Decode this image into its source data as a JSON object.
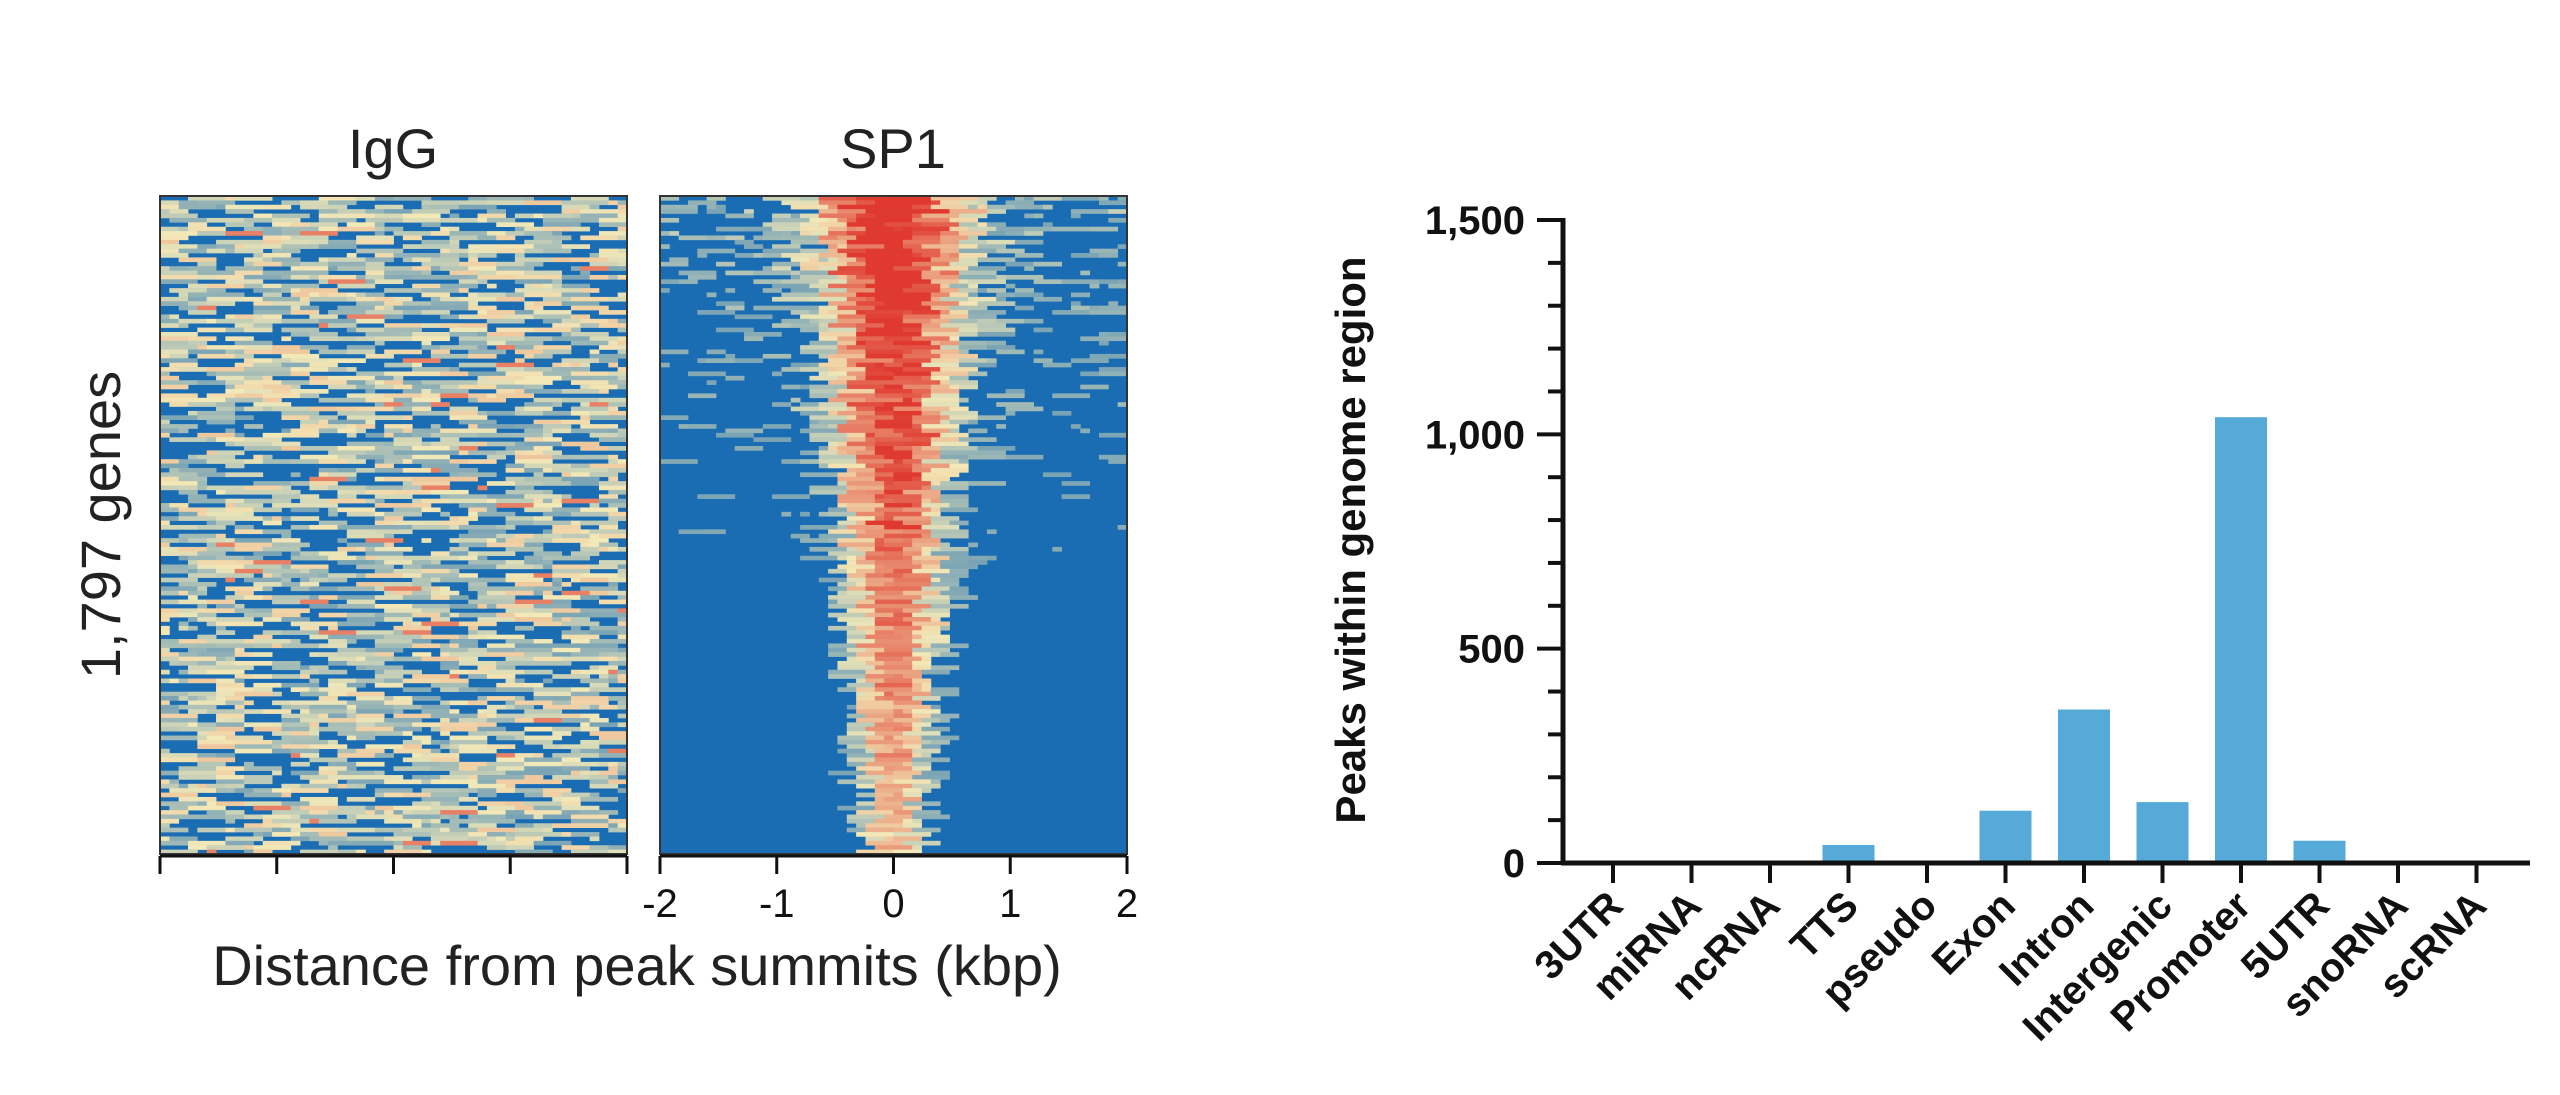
{
  "chart_data": [
    {
      "type": "heatmap",
      "panels": [
        {
          "title": "IgG",
          "pattern": "uniform"
        },
        {
          "title": "SP1",
          "pattern": "centered-enrichment"
        }
      ],
      "ylabel": "1,797 genes",
      "xlabel": "Distance from peak summits (kbp)",
      "xlim": [
        -2,
        2
      ],
      "xticks": [
        "-2",
        "-1",
        "0",
        "1",
        "2"
      ],
      "colors": {
        "low": "#1a6db3",
        "mid": "#f3e9b8",
        "high": "#e03a30"
      }
    },
    {
      "type": "bar",
      "title": "",
      "ylabel": "Peaks within genome region",
      "xlabel": "",
      "ylim": [
        0,
        1500
      ],
      "yticks": [
        {
          "value": 0,
          "label": "0"
        },
        {
          "value": 500,
          "label": "500"
        },
        {
          "value": 1000,
          "label": "1,000"
        },
        {
          "value": 1500,
          "label": "1,500"
        }
      ],
      "categories": [
        "3UTR",
        "miRNA",
        "ncRNA",
        "TTS",
        "pseudo",
        "Exon",
        "Intron",
        "Intergenic",
        "Promoter",
        "5UTR",
        "snoRNA",
        "scRNA"
      ],
      "values": [
        0,
        0,
        5,
        42,
        0,
        122,
        358,
        142,
        1040,
        52,
        0,
        0
      ],
      "bar_color": "#56aad8",
      "grid": false
    }
  ]
}
